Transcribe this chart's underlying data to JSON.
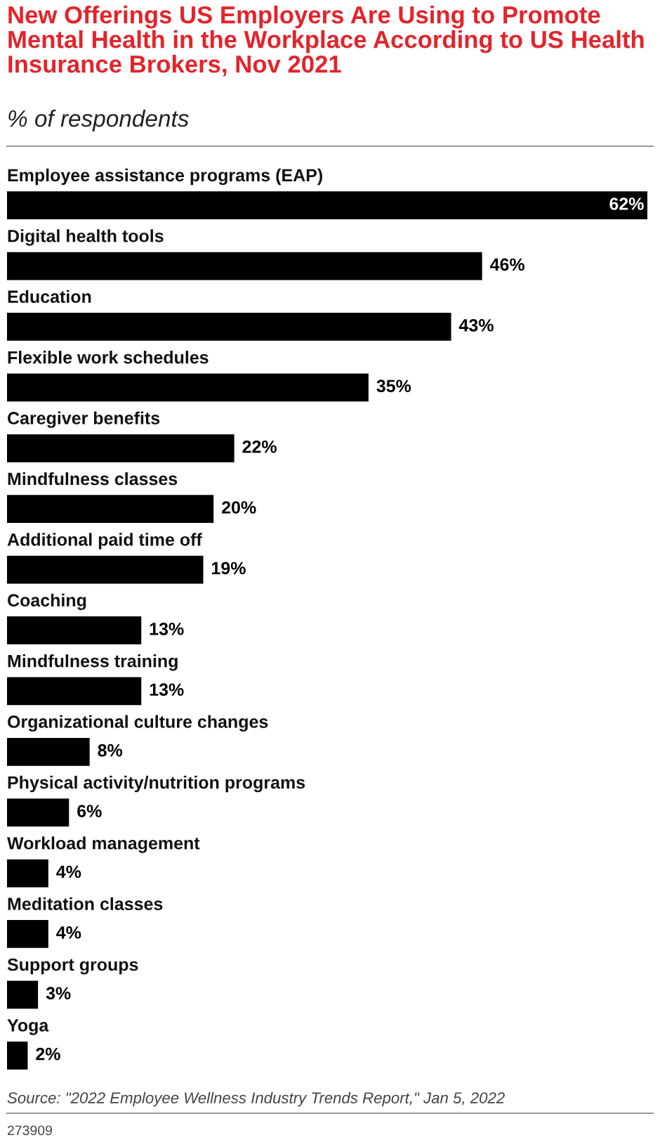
{
  "chart_data": {
    "type": "bar",
    "orientation": "horizontal",
    "title": "New Offerings US Employers Are Using to Promote Mental Health in the Workplace According to US Health Insurance Brokers, Nov 2021",
    "subtitle": "% of respondents",
    "categories": [
      "Employee assistance programs (EAP)",
      "Digital health tools",
      "Education",
      "Flexible work schedules",
      "Caregiver benefits",
      "Mindfulness classes",
      "Additional paid time off",
      "Coaching",
      "Mindfulness training",
      "Organizational culture changes",
      "Physical activity/nutrition programs",
      "Workload management",
      "Meditation classes",
      "Support groups",
      "Yoga"
    ],
    "values": [
      62,
      46,
      43,
      35,
      22,
      20,
      19,
      13,
      13,
      8,
      6,
      4,
      4,
      3,
      2
    ],
    "value_labels": [
      "62%",
      "46%",
      "43%",
      "35%",
      "22%",
      "20%",
      "19%",
      "13%",
      "13%",
      "8%",
      "6%",
      "4%",
      "4%",
      "3%",
      "2%"
    ],
    "color": "#000000",
    "annotations": [
      "Source: \"2022 Employee Wellness Industry Trends Report,\" Jan 5, 2022",
      "273909"
    ]
  }
}
